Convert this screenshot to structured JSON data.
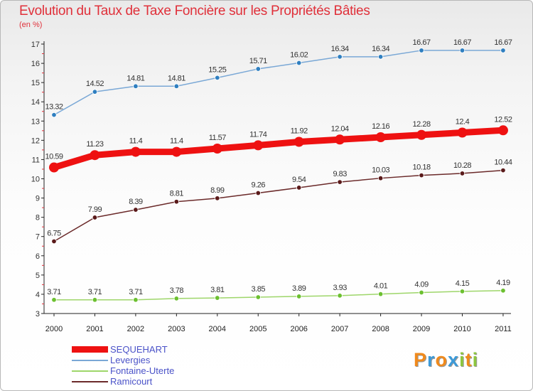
{
  "header": {
    "title": "Evolution du Taux de Taxe Foncière sur les Propriétés Bâties",
    "subtitle": "(en %)"
  },
  "chart_data": {
    "type": "line",
    "title": "Evolution du Taux de Taxe Foncière sur les Propriétés Bâties",
    "ylabel": "(en %)",
    "xlabel": "",
    "x": [
      "2000",
      "2001",
      "2002",
      "2003",
      "2004",
      "2005",
      "2006",
      "2007",
      "2008",
      "2009",
      "2010",
      "2011"
    ],
    "ylim": [
      3,
      17
    ],
    "yticks": [
      "3",
      "4",
      "5",
      "6",
      "7",
      "8",
      "9",
      "10",
      "11",
      "12",
      "13",
      "14",
      "15",
      "16",
      "17"
    ],
    "grid": false,
    "legend_position": "bottom-left",
    "series": [
      {
        "name": "SEQUEHART",
        "color": "#ee1111",
        "marker_color": "#ee1111",
        "width": "thick",
        "values": [
          10.59,
          11.23,
          11.4,
          11.4,
          11.57,
          11.74,
          11.92,
          12.04,
          12.16,
          12.28,
          12.4,
          12.52
        ],
        "labels": [
          "10.59",
          "11.23",
          "11.4",
          "11.4",
          "11.57",
          "11.74",
          "11.92",
          "12.04",
          "12.16",
          "12.28",
          "12.4",
          "12.52"
        ]
      },
      {
        "name": "Levergies",
        "color": "#7aa8d6",
        "marker_color": "#2f7fc0",
        "width": "thin",
        "values": [
          13.32,
          14.52,
          14.81,
          14.81,
          15.25,
          15.71,
          16.02,
          16.34,
          16.34,
          16.67,
          16.67,
          16.67
        ],
        "labels": [
          "13.32",
          "14.52",
          "14.81",
          "14.81",
          "15.25",
          "15.71",
          "16.02",
          "16.34",
          "16.34",
          "16.67",
          "16.67",
          "16.67"
        ]
      },
      {
        "name": "Fontaine-Uterte",
        "color": "#9ed66a",
        "marker_color": "#6cc030",
        "width": "thin",
        "values": [
          3.71,
          3.71,
          3.71,
          3.78,
          3.81,
          3.85,
          3.89,
          3.93,
          4.01,
          4.09,
          4.15,
          4.19
        ],
        "labels": [
          "3.71",
          "3.71",
          "3.71",
          "3.78",
          "3.81",
          "3.85",
          "3.89",
          "3.93",
          "4.01",
          "4.09",
          "4.15",
          "4.19"
        ]
      },
      {
        "name": "Ramicourt",
        "color": "#6b2a2a",
        "marker_color": "#5a1a1a",
        "width": "thin",
        "values": [
          6.75,
          7.99,
          8.39,
          8.81,
          8.99,
          9.26,
          9.54,
          9.83,
          10.03,
          10.18,
          10.28,
          10.44
        ],
        "labels": [
          "6.75",
          "7.99",
          "8.39",
          "8.81",
          "8.99",
          "9.26",
          "9.54",
          "9.83",
          "10.03",
          "10.18",
          "10.28",
          "10.44"
        ]
      }
    ]
  },
  "legend": {
    "items": [
      {
        "label": "SEQUEHART",
        "color": "#ee1111"
      },
      {
        "label": "Levergies",
        "color": "#7aa8d6"
      },
      {
        "label": "Fontaine-Uterte",
        "color": "#9ed66a"
      },
      {
        "label": "Ramicourt",
        "color": "#6b2a2a"
      }
    ]
  },
  "logo": {
    "letters": [
      "P",
      "r",
      "o",
      "x",
      "i",
      "t",
      "i"
    ],
    "colors": [
      "#f08a1c",
      "#3c9ad8",
      "#f08a1c",
      "#3c9ad8",
      "#8cc63e",
      "#f08a1c",
      "#8cc63e"
    ]
  }
}
